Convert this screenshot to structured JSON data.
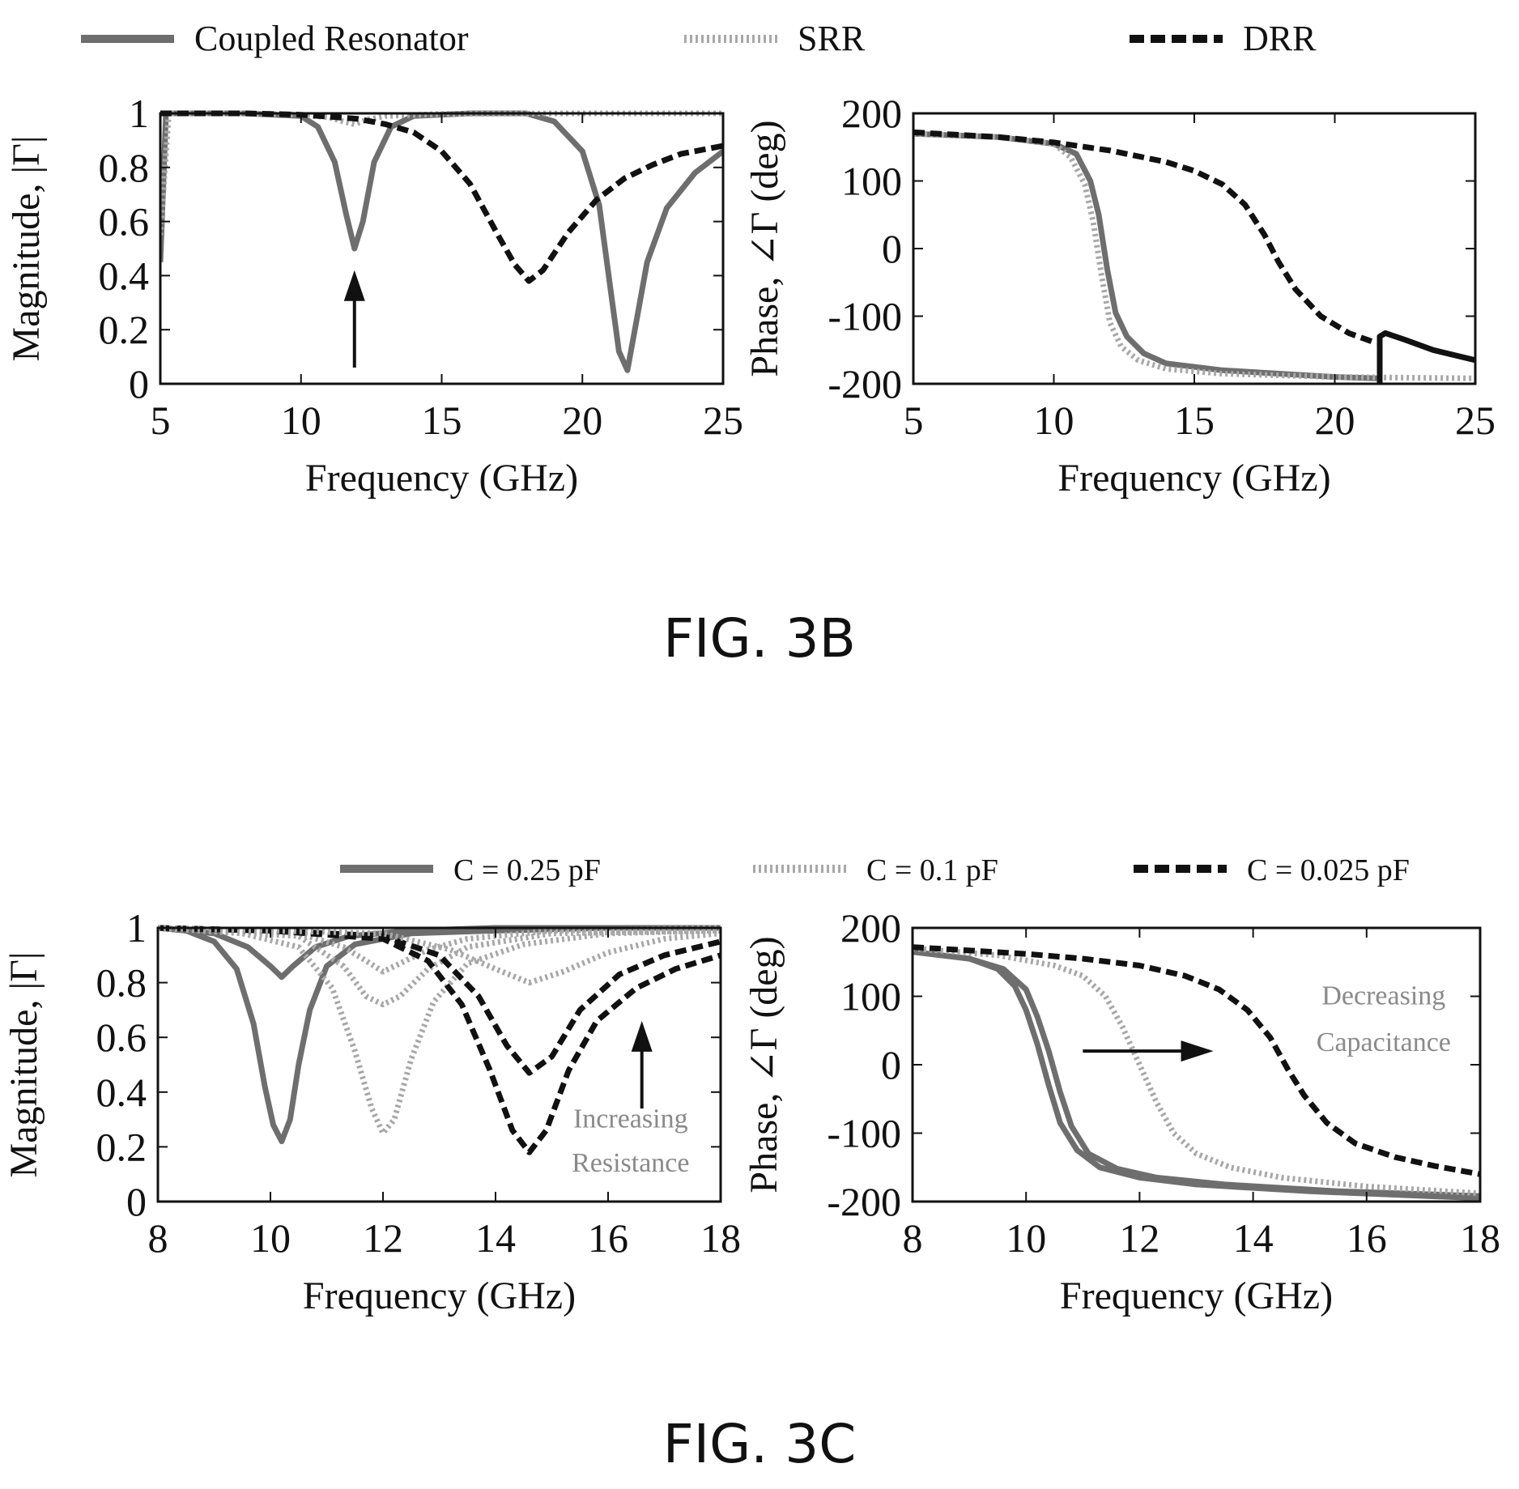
{
  "figures": [
    {
      "caption": "FIG. 3B",
      "legend": [
        {
          "label": "Coupled Resonator",
          "color": "#6e6e6e",
          "style": "solid"
        },
        {
          "label": "SRR",
          "color": "#a8a8a8",
          "style": "dotted"
        },
        {
          "label": "DRR",
          "color": "#111111",
          "style": "dashed"
        }
      ]
    },
    {
      "caption": "FIG. 3C",
      "legend": [
        {
          "label": "C = 0.25 pF",
          "color": "#6e6e6e",
          "style": "solid"
        },
        {
          "label": "C = 0.1 pF",
          "color": "#a8a8a8",
          "style": "dotted"
        },
        {
          "label": "C = 0.025 pF",
          "color": "#111111",
          "style": "dashed"
        }
      ]
    }
  ],
  "chart_data": [
    {
      "type": "line",
      "xlabel": "Frequency (GHz)",
      "ylabel": "Magnitude, |Γ|",
      "xlim": [
        5,
        25
      ],
      "ylim": [
        0,
        1
      ],
      "xticks": [
        "5",
        "10",
        "15",
        "20",
        "25"
      ],
      "yticks": [
        "0",
        "0.2",
        "0.4",
        "0.6",
        "0.8",
        "1"
      ],
      "grid": false,
      "annotations": [
        {
          "type": "arrow",
          "direction": "up",
          "x": 11.9,
          "y_from": 0.06,
          "y_to": 0.42
        }
      ],
      "series": [
        {
          "name": "Coupled Resonator",
          "color": "#6e6e6e",
          "style": "solid",
          "x": [
            5,
            5.2,
            5.5,
            8,
            10,
            10.6,
            11.2,
            11.6,
            11.9,
            12.2,
            12.6,
            13.2,
            14,
            16,
            18,
            19,
            20,
            20.6,
            21,
            21.3,
            21.6,
            21.9,
            22.3,
            23,
            24,
            25
          ],
          "y": [
            0.45,
            1.0,
            1.0,
            1.0,
            0.99,
            0.95,
            0.82,
            0.63,
            0.5,
            0.6,
            0.82,
            0.95,
            0.99,
            1.0,
            1.0,
            0.97,
            0.86,
            0.66,
            0.35,
            0.12,
            0.05,
            0.22,
            0.45,
            0.65,
            0.78,
            0.86
          ]
        },
        {
          "name": "SRR",
          "color": "#a8a8a8",
          "style": "dotted",
          "x": [
            5,
            5.3,
            8,
            10,
            11,
            11.5,
            11.9,
            12.3,
            13,
            15,
            20,
            25
          ],
          "y": [
            0.55,
            1.0,
            1.0,
            0.995,
            0.985,
            0.97,
            0.96,
            0.975,
            0.99,
            0.998,
            1.0,
            1.0
          ]
        },
        {
          "name": "DRR",
          "color": "#111111",
          "style": "dashed",
          "x": [
            5,
            8,
            10,
            12,
            13,
            14,
            15,
            16,
            17,
            17.6,
            18.1,
            18.6,
            19.5,
            20.5,
            21.5,
            22.5,
            23.5,
            25
          ],
          "y": [
            1.0,
            1.0,
            0.995,
            0.98,
            0.96,
            0.93,
            0.86,
            0.74,
            0.55,
            0.44,
            0.38,
            0.42,
            0.56,
            0.68,
            0.76,
            0.81,
            0.85,
            0.88
          ]
        }
      ]
    },
    {
      "type": "line",
      "xlabel": "Frequency (GHz)",
      "ylabel": "Phase, ∠Γ (deg)",
      "xlim": [
        5,
        25
      ],
      "ylim": [
        -200,
        200
      ],
      "xticks": [
        "5",
        "10",
        "15",
        "20",
        "25"
      ],
      "yticks": [
        "-200",
        "-100",
        "0",
        "100",
        "200"
      ],
      "grid": false,
      "series": [
        {
          "name": "Coupled Resonator",
          "color": "#6e6e6e",
          "style": "solid",
          "x": [
            5,
            8,
            10,
            10.8,
            11.3,
            11.6,
            11.9,
            12.2,
            12.6,
            13.2,
            14,
            16,
            18,
            20,
            21.5
          ],
          "y": [
            170,
            165,
            155,
            140,
            100,
            50,
            -30,
            -95,
            -130,
            -155,
            -170,
            -180,
            -185,
            -190,
            -192
          ]
        },
        {
          "name": "SRR",
          "color": "#a8a8a8",
          "style": "dotted",
          "x": [
            5,
            8,
            10,
            10.6,
            11.1,
            11.4,
            11.7,
            12,
            12.4,
            13,
            14,
            16,
            20,
            25
          ],
          "y": [
            170,
            165,
            155,
            135,
            95,
            40,
            -40,
            -110,
            -145,
            -165,
            -178,
            -185,
            -190,
            -192
          ]
        },
        {
          "name": "DRR",
          "color": "#111111",
          "style": "dashed",
          "x": [
            5,
            8,
            10,
            12,
            14,
            15,
            16,
            16.8,
            17.5,
            18,
            18.6,
            19.5,
            20.5,
            21.5
          ],
          "y": [
            172,
            165,
            157,
            145,
            128,
            115,
            95,
            65,
            20,
            -20,
            -60,
            -100,
            -125,
            -140
          ]
        },
        {
          "name": "",
          "color": "#111111",
          "style": "solid",
          "x": [
            21.6,
            21.6,
            21.8,
            22.5,
            23.5,
            25
          ],
          "y": [
            -200,
            -130,
            -125,
            -135,
            -150,
            -165
          ]
        }
      ]
    },
    {
      "type": "line",
      "xlabel": "Frequency (GHz)",
      "ylabel": "Magnitude, |Γ|",
      "xlim": [
        8,
        18
      ],
      "ylim": [
        0,
        1
      ],
      "xticks": [
        "8",
        "10",
        "12",
        "14",
        "16",
        "18"
      ],
      "yticks": [
        "0",
        "0.2",
        "0.4",
        "0.6",
        "0.8",
        "1"
      ],
      "grid": false,
      "annotations": [
        {
          "type": "arrow",
          "direction": "up",
          "x": 16.6,
          "y_from": 0.34,
          "y_to": 0.66
        },
        {
          "type": "text",
          "text": "Increasing",
          "x": 16.4,
          "y": 0.27
        },
        {
          "type": "text",
          "text": "Resistance",
          "x": 16.4,
          "y": 0.11
        }
      ],
      "series": [
        {
          "name": "C = 0.25 pF",
          "color": "#6e6e6e",
          "style": "solid",
          "x": [
            8,
            8.5,
            9,
            9.4,
            9.7,
            9.9,
            10.05,
            10.2,
            10.35,
            10.5,
            10.7,
            11,
            11.5,
            12.5,
            14,
            16,
            18
          ],
          "y": [
            1.0,
            0.99,
            0.95,
            0.85,
            0.65,
            0.42,
            0.28,
            0.22,
            0.3,
            0.5,
            0.7,
            0.86,
            0.94,
            0.98,
            0.99,
            1.0,
            1.0
          ]
        },
        {
          "name": "C = 0.25 pF",
          "color": "#6e6e6e",
          "style": "solid",
          "x": [
            8,
            9,
            9.6,
            10,
            10.2,
            10.4,
            10.8,
            11.4,
            12.5,
            14,
            18
          ],
          "y": [
            1.0,
            0.98,
            0.93,
            0.86,
            0.82,
            0.86,
            0.93,
            0.97,
            0.99,
            1.0,
            1.0
          ]
        },
        {
          "name": "C = 0.1 pF",
          "color": "#a8a8a8",
          "style": "dotted",
          "x": [
            8,
            9.5,
            10.5,
            11.1,
            11.5,
            11.8,
            12,
            12.2,
            12.5,
            12.9,
            13.5,
            14.5,
            16,
            18
          ],
          "y": [
            1.0,
            0.98,
            0.93,
            0.78,
            0.55,
            0.34,
            0.25,
            0.3,
            0.52,
            0.73,
            0.87,
            0.94,
            0.98,
            0.99
          ]
        },
        {
          "name": "C = 0.1 pF",
          "color": "#a8a8a8",
          "style": "dotted",
          "x": [
            8,
            10.5,
            11.3,
            11.7,
            12,
            12.3,
            12.8,
            13.5,
            15,
            18
          ],
          "y": [
            1.0,
            0.97,
            0.86,
            0.75,
            0.72,
            0.75,
            0.85,
            0.93,
            0.98,
            0.99
          ]
        },
        {
          "name": "C = 0.1 pF",
          "color": "#a8a8a8",
          "style": "dotted",
          "x": [
            8,
            10.5,
            11.3,
            11.7,
            12,
            12.3,
            12.8,
            13.5,
            15,
            18
          ],
          "y": [
            1.0,
            0.98,
            0.93,
            0.88,
            0.84,
            0.87,
            0.92,
            0.96,
            0.99,
            1.0
          ]
        },
        {
          "name": "C = 0.025 pF",
          "color": "#111111",
          "style": "dashed",
          "x": [
            8,
            10,
            12,
            12.8,
            13.4,
            13.9,
            14.3,
            14.6,
            14.9,
            15.3,
            15.8,
            16.5,
            17.2,
            18
          ],
          "y": [
            1.0,
            0.99,
            0.96,
            0.88,
            0.72,
            0.48,
            0.26,
            0.18,
            0.26,
            0.48,
            0.66,
            0.78,
            0.85,
            0.9
          ]
        },
        {
          "name": "C = 0.025 pF",
          "color": "#111111",
          "style": "dashed",
          "x": [
            8,
            10,
            12,
            13,
            13.7,
            14.2,
            14.6,
            15,
            15.5,
            16.2,
            17,
            18
          ],
          "y": [
            1.0,
            0.99,
            0.97,
            0.9,
            0.75,
            0.57,
            0.47,
            0.53,
            0.7,
            0.83,
            0.9,
            0.95
          ]
        },
        {
          "name": "C = 0.025 pF",
          "color": "#a8a8a8",
          "style": "dotted",
          "x": [
            8,
            10,
            12,
            13.2,
            14,
            14.6,
            15.2,
            16,
            17,
            18
          ],
          "y": [
            1.0,
            0.99,
            0.98,
            0.92,
            0.85,
            0.8,
            0.84,
            0.91,
            0.96,
            0.98
          ]
        }
      ]
    },
    {
      "type": "line",
      "xlabel": "Frequency (GHz)",
      "ylabel": "Phase, ∠Γ (deg)",
      "xlim": [
        8,
        18
      ],
      "ylim": [
        -200,
        200
      ],
      "xticks": [
        "8",
        "10",
        "12",
        "14",
        "16",
        "18"
      ],
      "yticks": [
        "-200",
        "-100",
        "0",
        "100",
        "200"
      ],
      "grid": false,
      "annotations": [
        {
          "type": "arrow",
          "direction": "right",
          "y": 20,
          "x_from": 11.0,
          "x_to": 13.3
        },
        {
          "type": "text",
          "text": "Decreasing",
          "x": 16.3,
          "y": 88
        },
        {
          "type": "text",
          "text": "Capacitance",
          "x": 16.3,
          "y": 20
        }
      ],
      "series": [
        {
          "name": "C = 0.25 pF",
          "color": "#6e6e6e",
          "style": "solid",
          "x": [
            8,
            9,
            9.5,
            9.8,
            10,
            10.2,
            10.4,
            10.6,
            10.9,
            11.3,
            12,
            13,
            15,
            18
          ],
          "y": [
            165,
            155,
            140,
            115,
            80,
            30,
            -30,
            -85,
            -125,
            -150,
            -165,
            -175,
            -185,
            -195
          ]
        },
        {
          "name": "C = 0.25 pF",
          "color": "#6e6e6e",
          "style": "solid",
          "x": [
            8,
            9,
            9.6,
            10,
            10.2,
            10.4,
            10.6,
            10.8,
            11.1,
            11.6,
            12.3,
            13.5,
            15.5,
            18
          ],
          "y": [
            165,
            155,
            140,
            110,
            70,
            20,
            -40,
            -90,
            -130,
            -152,
            -165,
            -175,
            -185,
            -192
          ]
        },
        {
          "name": "C = 0.1 pF",
          "color": "#a8a8a8",
          "style": "dotted",
          "x": [
            8,
            9.5,
            10.5,
            11,
            11.4,
            11.7,
            12,
            12.3,
            12.6,
            13,
            13.6,
            14.5,
            16,
            18
          ],
          "y": [
            170,
            160,
            145,
            130,
            100,
            55,
            0,
            -55,
            -100,
            -130,
            -150,
            -165,
            -178,
            -188
          ]
        },
        {
          "name": "C = 0.025 pF",
          "color": "#111111",
          "style": "dashed",
          "x": [
            8,
            10,
            11,
            12,
            12.8,
            13.4,
            13.9,
            14.3,
            14.6,
            14.9,
            15.3,
            15.8,
            16.5,
            17.2,
            18
          ],
          "y": [
            172,
            162,
            155,
            145,
            130,
            110,
            80,
            40,
            -5,
            -45,
            -85,
            -115,
            -135,
            -148,
            -160
          ]
        }
      ]
    }
  ]
}
